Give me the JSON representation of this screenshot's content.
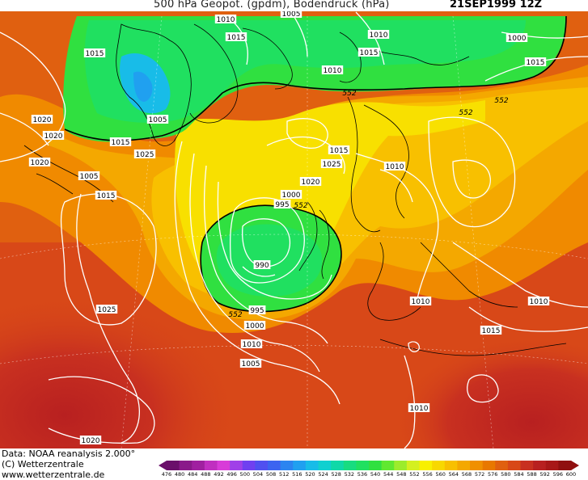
{
  "title": {
    "left": "500 hPa Geopot. (gpdm), Bodendruck (hPa)",
    "right": "21SEP1999 12Z"
  },
  "footer": {
    "source": "Data: NOAA reanalysis 2.000°",
    "copyright": "(C) Wetterzentrale",
    "website": "www.wetterzentrale.de"
  },
  "legend": {
    "values": [
      "476",
      "480",
      "484",
      "488",
      "492",
      "496",
      "500",
      "504",
      "508",
      "512",
      "516",
      "520",
      "524",
      "528",
      "532",
      "536",
      "540",
      "544",
      "548",
      "552",
      "556",
      "560",
      "564",
      "568",
      "572",
      "576",
      "580",
      "584",
      "588",
      "592",
      "596",
      "600"
    ],
    "colors": [
      "#6a0f6a",
      "#8a1a8a",
      "#a020a0",
      "#c02fc0",
      "#d83cd8",
      "#a040e8",
      "#7040f0",
      "#5050f0",
      "#3c64f0",
      "#2c84f0",
      "#20a0f0",
      "#18bce8",
      "#10d0d0",
      "#10d8a8",
      "#18dc80",
      "#20e060",
      "#30e040",
      "#60e830",
      "#9cec2c",
      "#d4f020",
      "#f8f000",
      "#f8d800",
      "#f8c000",
      "#f4a800",
      "#f09000",
      "#e87800",
      "#e06010",
      "#d84818",
      "#c83020",
      "#b82020",
      "#a81818",
      "#901010"
    ]
  },
  "map_labels": {
    "isobars": [
      "1010",
      "1005",
      "1015",
      "1010",
      "1015",
      "1015",
      "1000",
      "1015",
      "1005",
      "1010",
      "552",
      "1020",
      "1020",
      "1015",
      "552",
      "552",
      "1025",
      "1015",
      "1020",
      "1025",
      "1010",
      "1005",
      "1015",
      "1020",
      "1000",
      "995",
      "552",
      "990",
      "1025",
      "995",
      "552",
      "1000",
      "1010",
      "1005",
      "1010",
      "1010",
      "1015",
      "1010",
      "1020"
    ]
  },
  "colors": {
    "contour": "#ffffff",
    "coast": "#000000",
    "h552": "#000000"
  }
}
